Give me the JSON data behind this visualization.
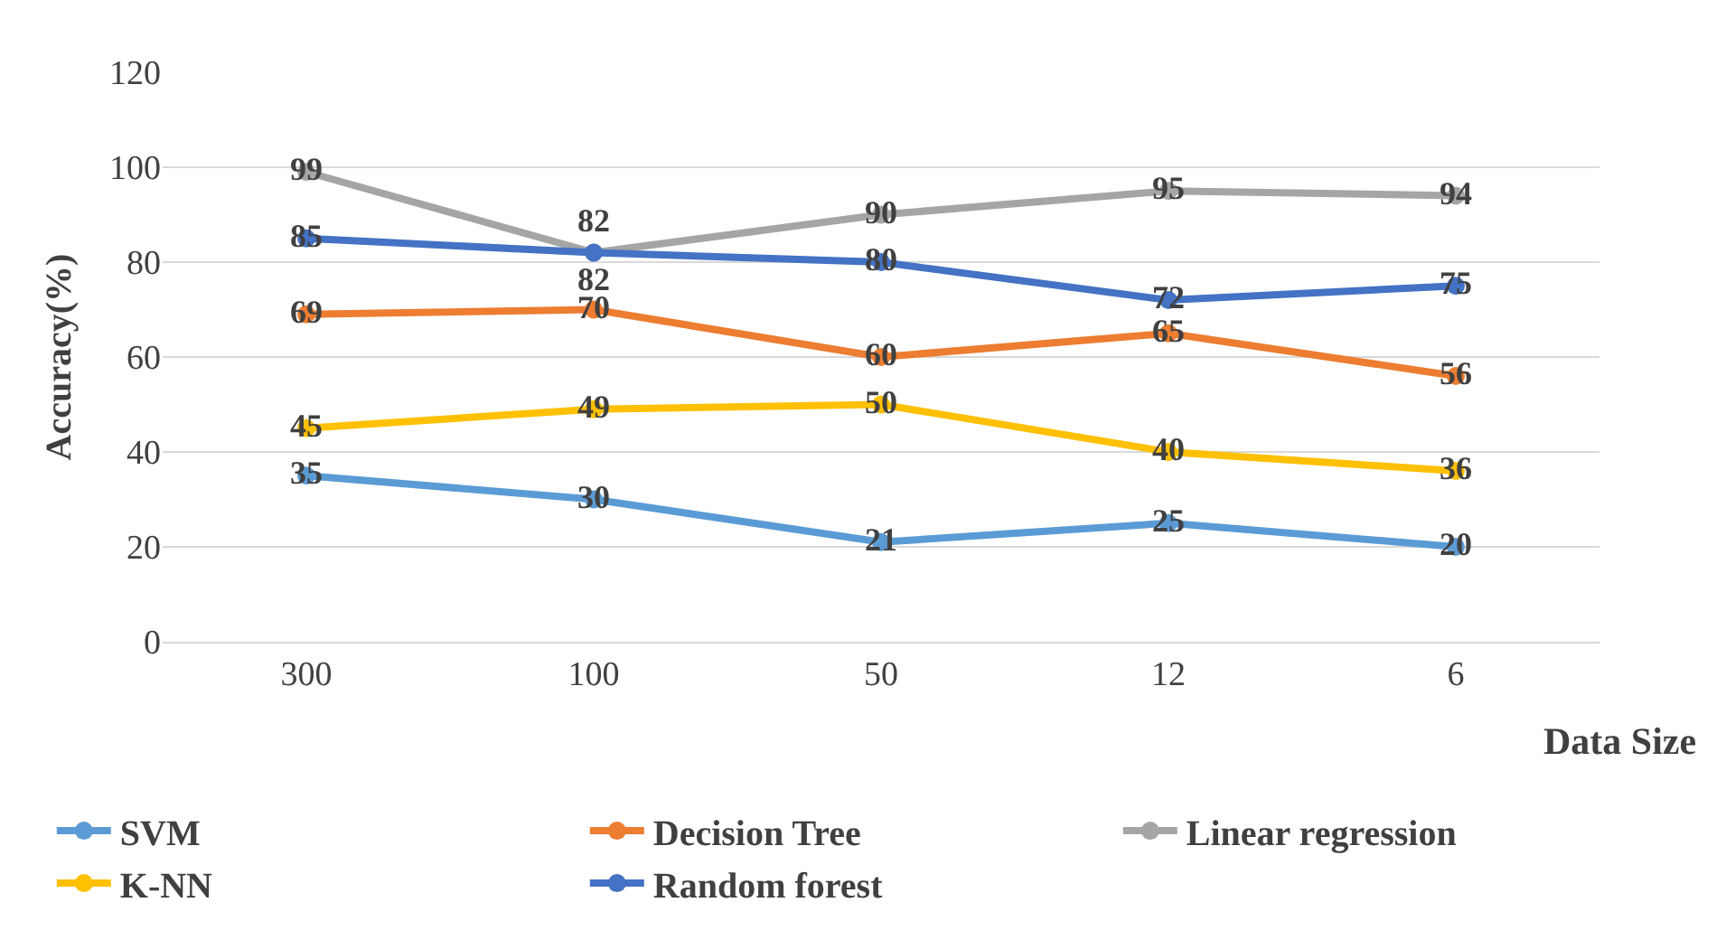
{
  "chart_data": {
    "type": "line",
    "xlabel": "Data Size",
    "ylabel": "Accuracy(%)",
    "categories": [
      "300",
      "100",
      "50",
      "12",
      "6"
    ],
    "series": [
      {
        "name": "SVM",
        "color": "#5b9bd5",
        "values": [
          35,
          30,
          21,
          25,
          20
        ]
      },
      {
        "name": "Decision Tree",
        "color": "#ed7d31",
        "values": [
          69,
          70,
          60,
          65,
          56
        ]
      },
      {
        "name": "Linear regression",
        "color": "#a5a5a5",
        "values": [
          99,
          82,
          90,
          95,
          94
        ]
      },
      {
        "name": "K-NN",
        "color": "#ffc000",
        "values": [
          45,
          49,
          50,
          40,
          36
        ]
      },
      {
        "name": "Random forest",
        "color": "#4472c4",
        "values": [
          85,
          82,
          80,
          72,
          75
        ]
      }
    ],
    "ylim": [
      0,
      120
    ],
    "yticks": [
      0,
      20,
      40,
      60,
      80,
      100,
      120
    ],
    "grid": "y",
    "legend": "bottom",
    "marker": "circle",
    "line_style": "solid",
    "data_labels": true
  }
}
